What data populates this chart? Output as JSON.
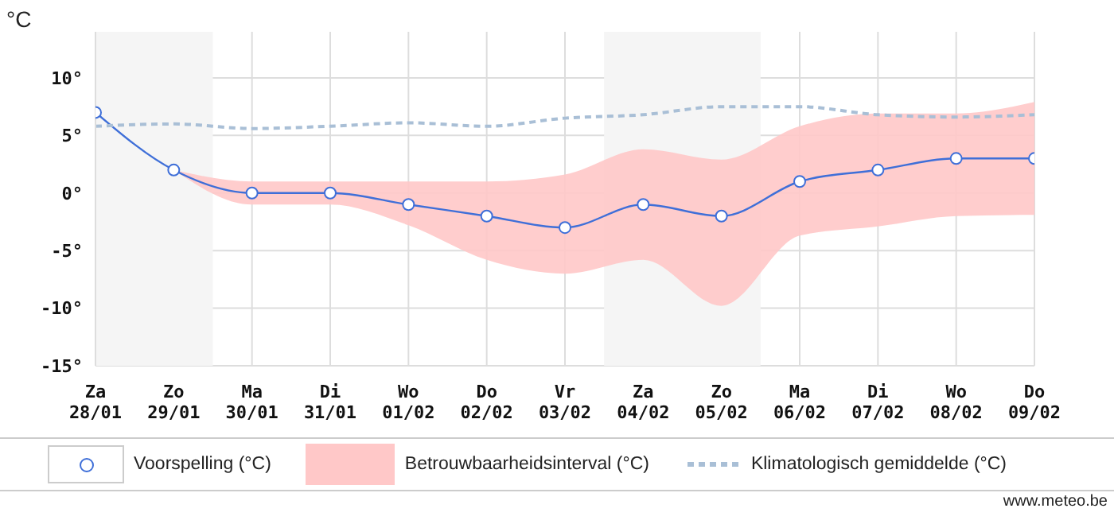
{
  "chart_data": {
    "type": "line",
    "ylabel": "°C",
    "categories": [
      "Za 28/01",
      "Zo 29/01",
      "Ma 30/01",
      "Di 31/01",
      "Wo 01/02",
      "Do 02/02",
      "Vr 03/02",
      "Za 04/02",
      "Zo 05/02",
      "Ma 06/02",
      "Di 07/02",
      "Wo 08/02",
      "Do 09/02"
    ],
    "series": [
      {
        "name": "Voorspelling (°C)",
        "color": "#3f6fd8",
        "marker": "circle",
        "line_style": "solid",
        "values": [
          7,
          2,
          0,
          0,
          -1,
          -2,
          -3,
          -1,
          -2,
          1,
          2,
          3,
          3
        ]
      },
      {
        "name": "Betrouwbaarheidsinterval (°C)",
        "type": "area",
        "color": "#ffc8c8",
        "values": [
          null,
          null,
          null,
          null,
          null,
          null,
          null,
          null,
          null,
          null,
          null,
          null,
          null
        ],
        "lower": [
          null,
          2,
          -1,
          -1,
          -2.8,
          -5.8,
          -7,
          -5.8,
          -9.8,
          -3.7,
          -2.9,
          -2,
          -1.9
        ],
        "upper": [
          null,
          2,
          1,
          1,
          1,
          1,
          1.6,
          3.8,
          2.9,
          5.8,
          6.9,
          6.9,
          7.9
        ]
      },
      {
        "name": "Klimatologisch gemiddelde (°C)",
        "color": "#a9bfd6",
        "marker": "none",
        "line_style": "dashed",
        "values": [
          5.8,
          6,
          5.6,
          5.8,
          6.1,
          5.8,
          6.5,
          6.8,
          7.5,
          7.5,
          6.8,
          6.6,
          6.8
        ]
      }
    ],
    "ylim": [
      -15,
      14
    ],
    "yticks": [
      {
        "value": -15,
        "label": "-15°"
      },
      {
        "value": -10,
        "label": "-10°"
      },
      {
        "value": -5,
        "label": "-5°"
      },
      {
        "value": 0,
        "label": "0°"
      },
      {
        "value": 5,
        "label": "5°"
      },
      {
        "value": 10,
        "label": "10°"
      }
    ],
    "grid": true,
    "legend": "bottom",
    "bands": [
      {
        "axis": "x",
        "from": "Za 28/01",
        "to": "Zo 29/01",
        "color": "#f5f5f5"
      },
      {
        "axis": "x",
        "from": "Za 04/02",
        "to": "Zo 05/02",
        "color": "#f5f5f5"
      }
    ],
    "annotations": [
      "www.meteo.be"
    ]
  }
}
